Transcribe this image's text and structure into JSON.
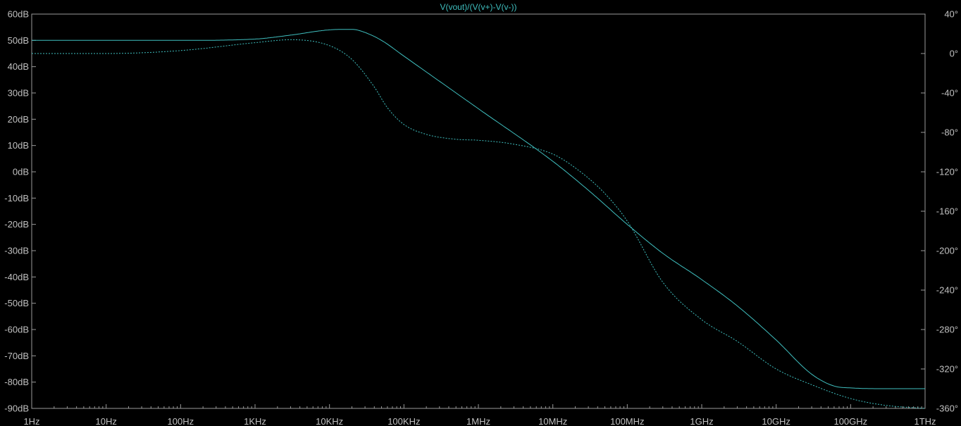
{
  "chart_data": {
    "type": "line",
    "title": "V(vout)/(V(v+)-V(v-))",
    "title_color": "#3fbfbf",
    "background": "#000000",
    "frame_color": "#9a9a9a",
    "tick_color": "#c0c0c0",
    "series_color": "#3fbfbf",
    "x_scale": "log",
    "xlim": [
      1,
      1000000000000
    ],
    "x_tick_values": [
      1,
      10,
      100,
      1000,
      10000,
      100000,
      1000000,
      10000000,
      100000000,
      1000000000,
      10000000000,
      100000000000,
      1000000000000
    ],
    "x_tick_labels": [
      "1Hz",
      "10Hz",
      "100Hz",
      "1KHz",
      "10KHz",
      "100KHz",
      "1MHz",
      "10MHz",
      "100MHz",
      "1GHz",
      "10GHz",
      "100GHz",
      "1THz"
    ],
    "y_left": {
      "lim": [
        -90,
        60
      ],
      "tick_values": [
        60,
        50,
        40,
        30,
        20,
        10,
        0,
        -10,
        -20,
        -30,
        -40,
        -50,
        -60,
        -70,
        -80,
        -90
      ],
      "tick_labels": [
        "60dB",
        "50dB",
        "40dB",
        "30dB",
        "20dB",
        "10dB",
        "0dB",
        "-10dB",
        "-20dB",
        "-30dB",
        "-40dB",
        "-50dB",
        "-60dB",
        "-70dB",
        "-80dB",
        "-90dB"
      ]
    },
    "y_right": {
      "lim": [
        -360,
        40
      ],
      "tick_values": [
        40,
        0,
        -40,
        -80,
        -120,
        -160,
        -200,
        -240,
        -280,
        -320,
        -360
      ],
      "tick_labels": [
        "40°",
        "0°",
        "-40°",
        "-80°",
        "-120°",
        "-160°",
        "-200°",
        "-240°",
        "-280°",
        "-320°",
        "-360°"
      ]
    },
    "grid": false,
    "series": [
      {
        "axis": "left",
        "style": "solid",
        "x": [
          1,
          10,
          100,
          1000,
          3000,
          10000,
          20000,
          30000,
          50000,
          100000,
          1000000,
          10000000,
          30000000,
          100000000,
          300000000,
          1000000000,
          3000000000,
          10000000000,
          30000000000,
          60000000000,
          100000000000,
          300000000000,
          1000000000000
        ],
        "y": [
          50,
          50,
          50,
          50.5,
          52,
          54,
          54.2,
          53,
          50,
          44,
          24,
          4,
          -7,
          -20,
          -31,
          -41,
          -51,
          -64,
          -77,
          -81.5,
          -82.2,
          -82.5,
          -82.5
        ]
      },
      {
        "axis": "right",
        "style": "dashed",
        "x": [
          1,
          10,
          100,
          1000,
          3000,
          10000,
          20000,
          40000,
          60000,
          100000,
          200000,
          500000,
          1000000,
          3000000,
          10000000,
          20000000,
          50000000,
          100000000,
          300000000,
          1000000000,
          3000000000,
          10000000000,
          30000000000,
          100000000000,
          300000000000,
          1000000000000
        ],
        "y": [
          0,
          0,
          3,
          11,
          14,
          8,
          -6,
          -34,
          -55,
          -72,
          -82,
          -87,
          -88,
          -92,
          -102,
          -116,
          -142,
          -170,
          -232,
          -270,
          -292,
          -320,
          -336,
          -350,
          -357,
          -360
        ]
      }
    ]
  }
}
